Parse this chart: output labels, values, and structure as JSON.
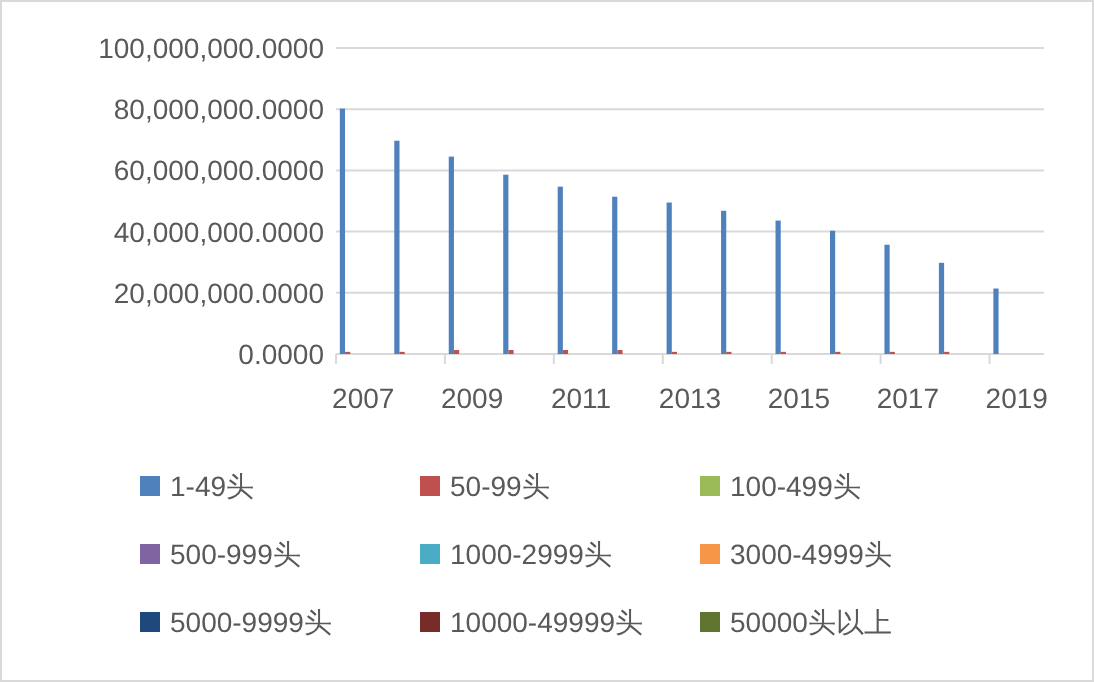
{
  "chart_data": {
    "type": "bar",
    "categories": [
      "2007",
      null,
      "2009",
      null,
      "2011",
      null,
      "2013",
      null,
      "2015",
      null,
      "2017",
      null,
      "2019"
    ],
    "ylim": [
      0,
      100000000
    ],
    "yticks": [
      {
        "value": 0,
        "label": "0.0000"
      },
      {
        "value": 20000000,
        "label": "20,000,000.0000"
      },
      {
        "value": 40000000,
        "label": "40,000,000.0000"
      },
      {
        "value": 60000000,
        "label": "60,000,000.0000"
      },
      {
        "value": 80000000,
        "label": "80,000,000.0000"
      },
      {
        "value": 100000000,
        "label": "100,000,000.0000"
      }
    ],
    "grid": "y",
    "legend": "bottom",
    "series": [
      {
        "name": "1-49头",
        "color": "#4f81bd",
        "values": [
          80200000,
          69700000,
          64500000,
          58600000,
          54700000,
          51400000,
          49500000,
          46800000,
          43600000,
          40300000,
          35700000,
          29800000,
          21400000
        ]
      },
      {
        "name": "50-99头",
        "color": "#c0504d",
        "values": [
          700000,
          700000,
          1300000,
          1300000,
          1300000,
          1300000,
          700000,
          700000,
          700000,
          700000,
          700000,
          700000,
          0
        ]
      },
      {
        "name": "100-499头",
        "color": "#9bbb59",
        "values": [
          0,
          0,
          0,
          0,
          0,
          0,
          0,
          0,
          0,
          0,
          0,
          0,
          0
        ]
      },
      {
        "name": "500-999头",
        "color": "#8064a2",
        "values": [
          0,
          0,
          0,
          0,
          0,
          0,
          0,
          0,
          0,
          0,
          0,
          0,
          0
        ]
      },
      {
        "name": "1000-2999头",
        "color": "#4bacc6",
        "values": [
          0,
          0,
          0,
          0,
          0,
          0,
          0,
          0,
          0,
          0,
          0,
          0,
          0
        ]
      },
      {
        "name": "3000-4999头",
        "color": "#f79646",
        "values": [
          0,
          0,
          0,
          0,
          0,
          0,
          0,
          0,
          0,
          0,
          0,
          0,
          0
        ]
      },
      {
        "name": "5000-9999头",
        "color": "#1f497d",
        "values": [
          0,
          0,
          0,
          0,
          0,
          0,
          0,
          0,
          0,
          0,
          0,
          0,
          0
        ]
      },
      {
        "name": "10000-49999头",
        "color": "#772c2a",
        "values": [
          0,
          0,
          0,
          0,
          0,
          0,
          0,
          0,
          0,
          0,
          0,
          0,
          0
        ]
      },
      {
        "name": "50000头以上",
        "color": "#5f7530",
        "values": [
          0,
          0,
          0,
          0,
          0,
          0,
          0,
          0,
          0,
          0,
          0,
          0,
          0
        ]
      }
    ]
  }
}
